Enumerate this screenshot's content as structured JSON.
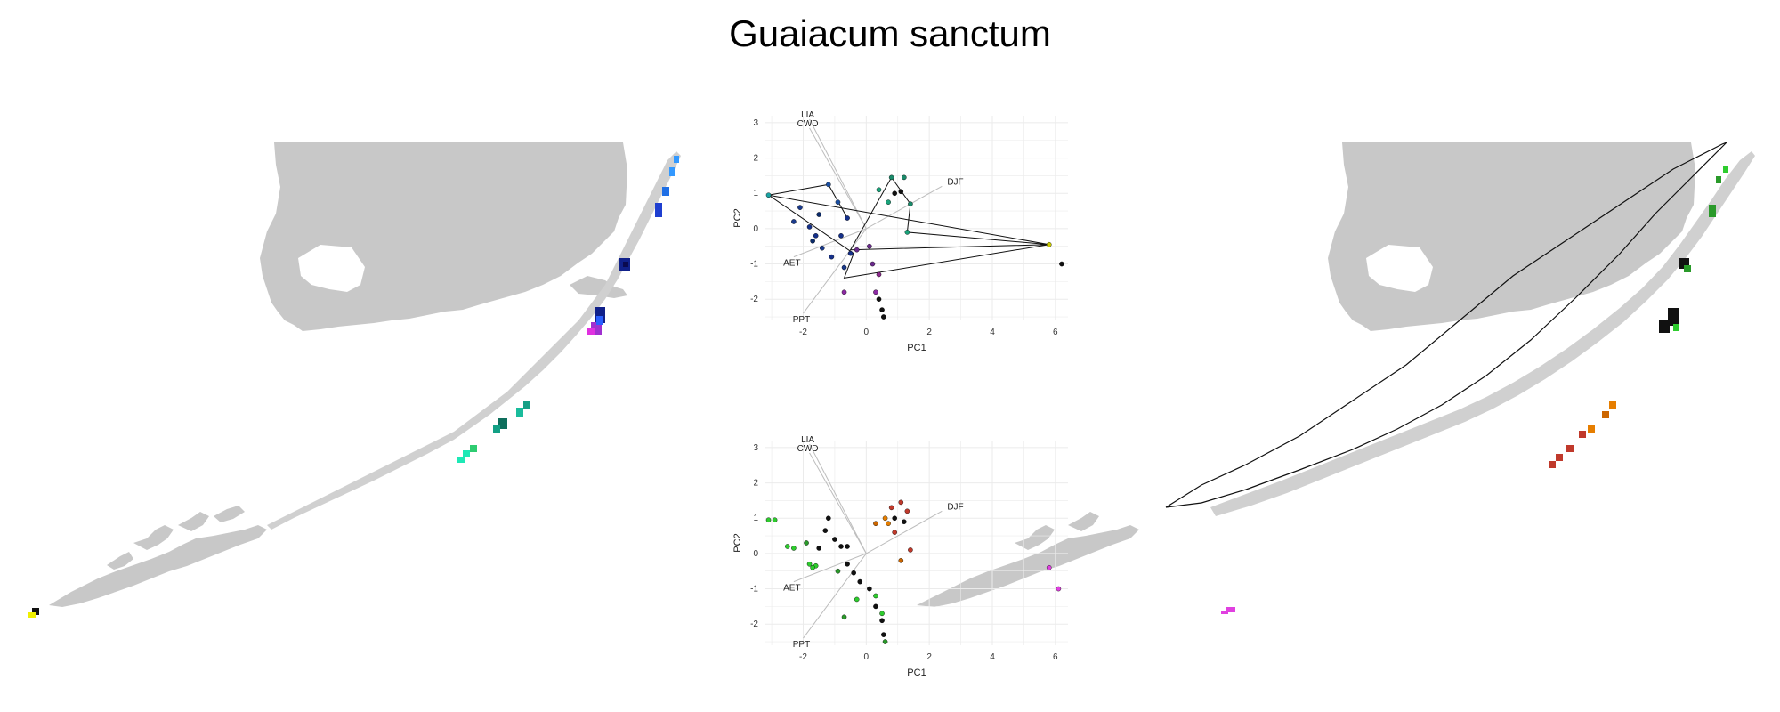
{
  "title": "Guaiacum sanctum",
  "colors": {
    "land": "#c8c8c8",
    "grid": "#ebebeb",
    "vector": "#bdbdbd"
  },
  "maps": [
    {
      "name": "map-left",
      "description_type": "cluster-colored distribution grid"
    },
    {
      "name": "map-right",
      "description_type": "distribution grid with hull outline"
    }
  ],
  "chart_data": [
    {
      "type": "scatter",
      "xlabel": "PC1",
      "ylabel": "PC2",
      "xticks": [
        -2,
        0,
        2,
        4,
        6
      ],
      "yticks": [
        -2,
        -1,
        0,
        1,
        2,
        3
      ],
      "xlim": [
        -3.2,
        6.4
      ],
      "ylim": [
        -2.6,
        3.2
      ],
      "grid": true,
      "vectors": [
        {
          "label": "LIA",
          "x": -1.8,
          "y": 3.1
        },
        {
          "label": "CWD",
          "x": -1.8,
          "y": 2.85
        },
        {
          "label": "DJF",
          "x": 2.4,
          "y": 1.2
        },
        {
          "label": "AET",
          "x": -2.3,
          "y": -0.8
        },
        {
          "label": "PPT",
          "x": -2.0,
          "y": -2.4
        }
      ],
      "points": [
        {
          "x": -3.1,
          "y": 0.95,
          "c": "#1aa3a3"
        },
        {
          "x": -1.2,
          "y": 1.25,
          "c": "#1a4fa3"
        },
        {
          "x": -2.1,
          "y": 0.6,
          "c": "#1a3a8c"
        },
        {
          "x": -2.3,
          "y": 0.2,
          "c": "#1a3a8c"
        },
        {
          "x": -1.8,
          "y": 0.05,
          "c": "#15308a"
        },
        {
          "x": -1.6,
          "y": -0.2,
          "c": "#15308a"
        },
        {
          "x": -1.4,
          "y": -0.55,
          "c": "#1a3a8c"
        },
        {
          "x": -1.1,
          "y": -0.8,
          "c": "#15308a"
        },
        {
          "x": -0.7,
          "y": -1.1,
          "c": "#1a3a8c"
        },
        {
          "x": -0.5,
          "y": -0.7,
          "c": "#15308a"
        },
        {
          "x": -0.8,
          "y": -0.2,
          "c": "#15308a"
        },
        {
          "x": -0.6,
          "y": 0.3,
          "c": "#15308a"
        },
        {
          "x": -0.9,
          "y": 0.75,
          "c": "#1a4fa3"
        },
        {
          "x": -1.5,
          "y": 0.4,
          "c": "#0a2a6a"
        },
        {
          "x": -1.7,
          "y": -0.35,
          "c": "#0a2a6a"
        },
        {
          "x": -0.3,
          "y": -0.6,
          "c": "#6a2a8c"
        },
        {
          "x": 0.1,
          "y": -0.5,
          "c": "#6a2a8c"
        },
        {
          "x": 0.4,
          "y": -1.3,
          "c": "#8c2a8c"
        },
        {
          "x": 0.3,
          "y": -1.8,
          "c": "#8c2aa3"
        },
        {
          "x": -0.7,
          "y": -1.8,
          "c": "#8c2aa3"
        },
        {
          "x": 0.2,
          "y": -1.0,
          "c": "#6a2a8c"
        },
        {
          "x": 0.4,
          "y": -2.0,
          "c": "#111111"
        },
        {
          "x": 0.5,
          "y": -2.3,
          "c": "#111111"
        },
        {
          "x": 0.55,
          "y": -2.5,
          "c": "#111111"
        },
        {
          "x": 0.8,
          "y": 1.45,
          "c": "#1a8a6a"
        },
        {
          "x": 1.2,
          "y": 1.45,
          "c": "#1a8a6a"
        },
        {
          "x": 0.4,
          "y": 1.1,
          "c": "#1aa37a"
        },
        {
          "x": 0.7,
          "y": 0.75,
          "c": "#1aa37a"
        },
        {
          "x": 1.4,
          "y": 0.7,
          "c": "#1a8a6a"
        },
        {
          "x": 1.3,
          "y": -0.1,
          "c": "#1aa37a"
        },
        {
          "x": 0.9,
          "y": 1.0,
          "c": "#111111"
        },
        {
          "x": 1.1,
          "y": 1.05,
          "c": "#111111"
        },
        {
          "x": 5.8,
          "y": -0.45,
          "c": "#c9c900"
        },
        {
          "x": 6.2,
          "y": -1.0,
          "c": "#111111"
        }
      ],
      "hull_lines": [
        [
          [
            -3.1,
            0.95
          ],
          [
            5.8,
            -0.45
          ],
          [
            -0.7,
            -1.4
          ],
          [
            -0.4,
            -0.7
          ],
          [
            -3.1,
            0.95
          ]
        ],
        [
          [
            -3.1,
            0.95
          ],
          [
            -1.2,
            1.25
          ],
          [
            -0.6,
            0.3
          ]
        ],
        [
          [
            0.8,
            1.45
          ],
          [
            -0.5,
            -0.6
          ],
          [
            5.8,
            -0.45
          ],
          [
            1.3,
            -0.1
          ],
          [
            1.4,
            0.7
          ],
          [
            0.8,
            1.45
          ]
        ]
      ]
    },
    {
      "type": "scatter",
      "xlabel": "PC1",
      "ylabel": "PC2",
      "xticks": [
        -2,
        0,
        2,
        4,
        6
      ],
      "yticks": [
        -2,
        -1,
        0,
        1,
        2,
        3
      ],
      "xlim": [
        -3.2,
        6.4
      ],
      "ylim": [
        -2.6,
        3.2
      ],
      "grid": true,
      "vectors": [
        {
          "label": "LIA",
          "x": -1.8,
          "y": 3.1
        },
        {
          "label": "CWD",
          "x": -1.8,
          "y": 2.85
        },
        {
          "label": "DJF",
          "x": 2.4,
          "y": 1.2
        },
        {
          "label": "AET",
          "x": -2.3,
          "y": -0.8
        },
        {
          "label": "PPT",
          "x": -2.0,
          "y": -2.4
        }
      ],
      "points": [
        {
          "x": -3.1,
          "y": 0.95,
          "c": "#2ecc2e"
        },
        {
          "x": -2.9,
          "y": 0.95,
          "c": "#2ecc2e"
        },
        {
          "x": -2.5,
          "y": 0.2,
          "c": "#2ecc2e"
        },
        {
          "x": -2.3,
          "y": 0.15,
          "c": "#2ecc2e"
        },
        {
          "x": -1.9,
          "y": 0.3,
          "c": "#2a9a2a"
        },
        {
          "x": -1.8,
          "y": -0.3,
          "c": "#2ecc2e"
        },
        {
          "x": -1.6,
          "y": -0.35,
          "c": "#2ecc2e"
        },
        {
          "x": -1.7,
          "y": -0.4,
          "c": "#2ecc2e"
        },
        {
          "x": -1.2,
          "y": 1.0,
          "c": "#111111"
        },
        {
          "x": -1.3,
          "y": 0.65,
          "c": "#111111"
        },
        {
          "x": -1.0,
          "y": 0.4,
          "c": "#111111"
        },
        {
          "x": -0.8,
          "y": 0.2,
          "c": "#111111"
        },
        {
          "x": -0.6,
          "y": 0.2,
          "c": "#111111"
        },
        {
          "x": -1.5,
          "y": 0.15,
          "c": "#111111"
        },
        {
          "x": -0.6,
          "y": -0.3,
          "c": "#111111"
        },
        {
          "x": -0.4,
          "y": -0.55,
          "c": "#111111"
        },
        {
          "x": -0.2,
          "y": -0.8,
          "c": "#111111"
        },
        {
          "x": 0.1,
          "y": -1.0,
          "c": "#111111"
        },
        {
          "x": 0.3,
          "y": -1.5,
          "c": "#111111"
        },
        {
          "x": 0.5,
          "y": -1.9,
          "c": "#111111"
        },
        {
          "x": 0.55,
          "y": -2.3,
          "c": "#111111"
        },
        {
          "x": -0.9,
          "y": -0.5,
          "c": "#2a9a2a"
        },
        {
          "x": -0.7,
          "y": -1.8,
          "c": "#2a9a2a"
        },
        {
          "x": 0.3,
          "y": -1.2,
          "c": "#2ecc2e"
        },
        {
          "x": 0.5,
          "y": -1.7,
          "c": "#2ecc2e"
        },
        {
          "x": 0.6,
          "y": -2.5,
          "c": "#2a9a2a"
        },
        {
          "x": -0.3,
          "y": -1.3,
          "c": "#2ecc2e"
        },
        {
          "x": 0.6,
          "y": 1.0,
          "c": "#e67e00"
        },
        {
          "x": 0.7,
          "y": 0.85,
          "c": "#e67e00"
        },
        {
          "x": 0.3,
          "y": 0.85,
          "c": "#cc6600"
        },
        {
          "x": 0.8,
          "y": 1.3,
          "c": "#c0392b"
        },
        {
          "x": 1.1,
          "y": 1.45,
          "c": "#c0392b"
        },
        {
          "x": 1.3,
          "y": 1.2,
          "c": "#c0392b"
        },
        {
          "x": 0.9,
          "y": 0.6,
          "c": "#c0392b"
        },
        {
          "x": 1.4,
          "y": 0.1,
          "c": "#c0392b"
        },
        {
          "x": 1.1,
          "y": -0.2,
          "c": "#cc6600"
        },
        {
          "x": 0.9,
          "y": 1.0,
          "c": "#111111"
        },
        {
          "x": 1.2,
          "y": 0.9,
          "c": "#111111"
        },
        {
          "x": 5.8,
          "y": -0.4,
          "c": "#e040e0"
        },
        {
          "x": 6.1,
          "y": -1.0,
          "c": "#e040e0"
        }
      ],
      "hull_lines": []
    }
  ]
}
